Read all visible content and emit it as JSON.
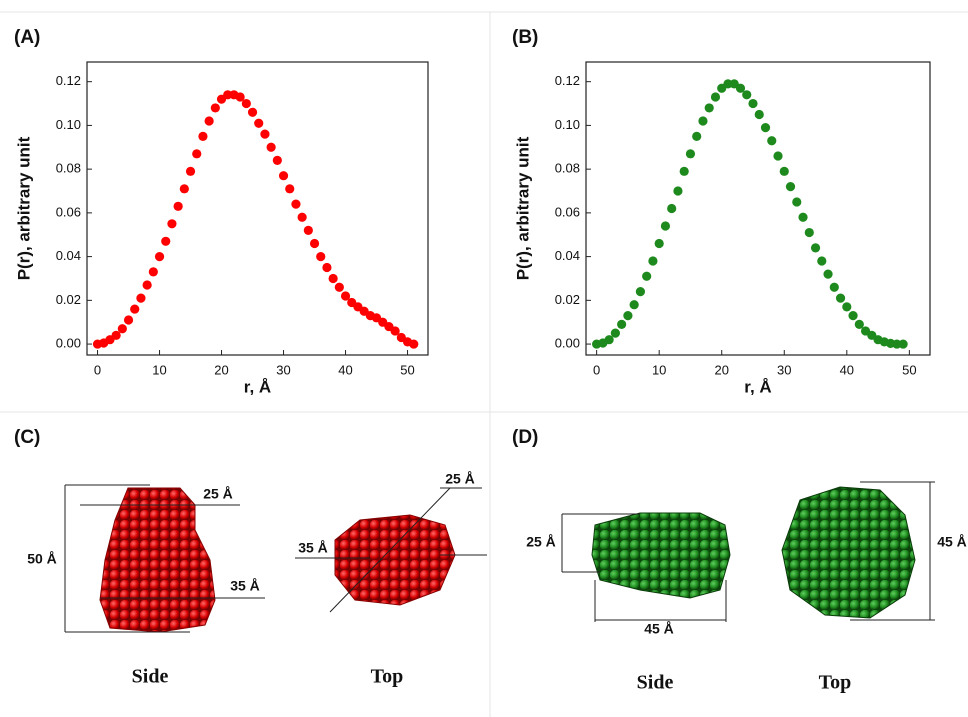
{
  "chart_data": [
    {
      "type": "scatter",
      "panel_label": "(A)",
      "x_label": "r, Å",
      "y_label": "P(r), arbitrary unit",
      "color": "#ff0000",
      "x": [
        0,
        1,
        2,
        3,
        4,
        5,
        6,
        7,
        8,
        9,
        10,
        11,
        12,
        13,
        14,
        15,
        16,
        17,
        18,
        19,
        20,
        21,
        22,
        23,
        24,
        25,
        26,
        27,
        28,
        29,
        30,
        31,
        32,
        33,
        34,
        35,
        36,
        37,
        38,
        39,
        40,
        41,
        42,
        43,
        44,
        45,
        46,
        47,
        48,
        49,
        50,
        51
      ],
      "values": [
        0,
        0.0005,
        0.002,
        0.004,
        0.007,
        0.011,
        0.016,
        0.021,
        0.027,
        0.033,
        0.04,
        0.047,
        0.055,
        0.063,
        0.071,
        0.079,
        0.087,
        0.095,
        0.102,
        0.108,
        0.112,
        0.114,
        0.114,
        0.113,
        0.11,
        0.106,
        0.101,
        0.096,
        0.09,
        0.084,
        0.077,
        0.071,
        0.064,
        0.058,
        0.052,
        0.046,
        0.04,
        0.035,
        0.03,
        0.026,
        0.022,
        0.019,
        0.017,
        0.015,
        0.013,
        0.012,
        0.01,
        0.008,
        0.006,
        0.003,
        0.001,
        0
      ],
      "xlim": [
        -1.7,
        53.3
      ],
      "ylim": [
        -0.005,
        0.129
      ],
      "xticks": [
        0,
        10,
        20,
        30,
        40,
        50
      ],
      "yticks": [
        {
          "value": 0,
          "label": "0.00"
        },
        {
          "value": 0.02,
          "label": "0.02"
        },
        {
          "value": 0.04,
          "label": "0.04"
        },
        {
          "value": 0.06,
          "label": "0.06"
        },
        {
          "value": 0.08,
          "label": "0.08"
        },
        {
          "value": 0.1,
          "label": "0.10"
        },
        {
          "value": 0.12,
          "label": "0.12"
        }
      ]
    },
    {
      "type": "scatter",
      "panel_label": "(B)",
      "x_label": "r, Å",
      "y_label": "P(r), arbitrary unit",
      "color": "#1e8a1e",
      "x": [
        0,
        1,
        2,
        3,
        4,
        5,
        6,
        7,
        8,
        9,
        10,
        11,
        12,
        13,
        14,
        15,
        16,
        17,
        18,
        19,
        20,
        21,
        22,
        23,
        24,
        25,
        26,
        27,
        28,
        29,
        30,
        31,
        32,
        33,
        34,
        35,
        36,
        37,
        38,
        39,
        40,
        41,
        42,
        43,
        44,
        45,
        46,
        47,
        48,
        49
      ],
      "values": [
        0,
        0.0005,
        0.002,
        0.005,
        0.009,
        0.013,
        0.018,
        0.024,
        0.031,
        0.038,
        0.046,
        0.054,
        0.062,
        0.07,
        0.079,
        0.087,
        0.095,
        0.102,
        0.108,
        0.113,
        0.117,
        0.119,
        0.119,
        0.117,
        0.114,
        0.11,
        0.105,
        0.099,
        0.093,
        0.086,
        0.079,
        0.072,
        0.065,
        0.058,
        0.051,
        0.044,
        0.038,
        0.032,
        0.026,
        0.021,
        0.017,
        0.013,
        0.009,
        0.006,
        0.004,
        0.002,
        0.001,
        0.0003,
        0,
        0
      ],
      "xlim": [
        -1.7,
        53.3
      ],
      "ylim": [
        -0.005,
        0.129
      ],
      "xticks": [
        0,
        10,
        20,
        30,
        40,
        50
      ],
      "yticks": [
        {
          "value": 0,
          "label": "0.00"
        },
        {
          "value": 0.02,
          "label": "0.02"
        },
        {
          "value": 0.04,
          "label": "0.04"
        },
        {
          "value": 0.06,
          "label": "0.06"
        },
        {
          "value": 0.08,
          "label": "0.08"
        },
        {
          "value": 0.1,
          "label": "0.10"
        },
        {
          "value": 0.12,
          "label": "0.12"
        }
      ]
    }
  ],
  "models": [
    {
      "panel_label": "(C)",
      "annotations": [
        "50 Å",
        "25 Å",
        "35 Å",
        "25 Å",
        "35 Å"
      ],
      "views": [
        "Side",
        "Top"
      ]
    },
    {
      "panel_label": "(D)",
      "annotations": [
        "25 Å",
        "45 Å",
        "45 Å"
      ],
      "views": [
        "Side",
        "Top"
      ]
    }
  ]
}
